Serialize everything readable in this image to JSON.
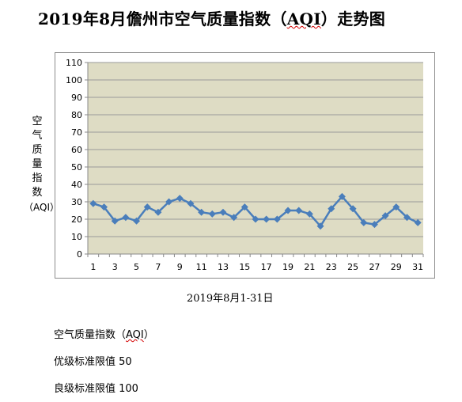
{
  "title_prefix": "2019年8月儋州市空气质量指数（",
  "title_aqi": "AQI",
  "title_suffix": "）走势图",
  "chart_data": {
    "type": "line",
    "ylabel_chars": [
      "空",
      "气",
      "质",
      "量",
      "指",
      "数"
    ],
    "ylabel_unit": "（AQI）",
    "xlabel": "2019年8月1-31日",
    "ylim": [
      0,
      110
    ],
    "ytick_step": 10,
    "x": [
      1,
      2,
      3,
      4,
      5,
      6,
      7,
      8,
      9,
      10,
      11,
      12,
      13,
      14,
      15,
      16,
      17,
      18,
      19,
      20,
      21,
      22,
      23,
      24,
      25,
      26,
      27,
      28,
      29,
      30,
      31
    ],
    "xtick_labels": [
      "1",
      "3",
      "5",
      "7",
      "9",
      "11",
      "13",
      "15",
      "17",
      "19",
      "21",
      "23",
      "25",
      "27",
      "29",
      "31"
    ],
    "series": [
      {
        "values": [
          29,
          27,
          19,
          21,
          19,
          27,
          24,
          30,
          32,
          29,
          24,
          23,
          24,
          21,
          27,
          20,
          20,
          20,
          25,
          25,
          23,
          16,
          26,
          33,
          26,
          18,
          17,
          22,
          27,
          21,
          18
        ]
      }
    ],
    "grid": true,
    "colors": {
      "line": "#4a7ebb",
      "plot_bg": "#dedcc4",
      "grid": "#9a9a9a"
    }
  },
  "notes": {
    "line1_prefix": "空气质量指数（",
    "line1_aqi": "AQI",
    "line1_suffix": "）",
    "line2": "优级标准限值 50",
    "line3": "良级标准限值 100"
  }
}
